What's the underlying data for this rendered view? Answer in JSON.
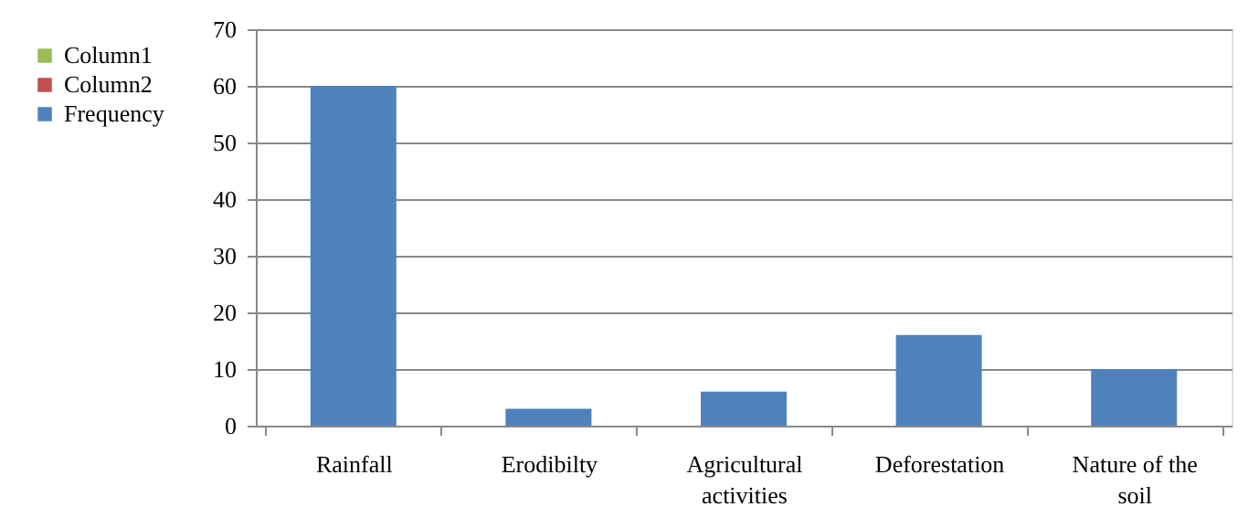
{
  "chart_data": {
    "type": "bar",
    "categories": [
      "Rainfall",
      "Erodibilty",
      "Agricultural activities",
      "Deforestation",
      "Nature of the soil"
    ],
    "series": [
      {
        "name": "Column1",
        "color": "#9bbb59",
        "values": [
          null,
          null,
          null,
          null,
          null
        ]
      },
      {
        "name": "Column2",
        "color": "#c0504d",
        "values": [
          null,
          null,
          null,
          null,
          null
        ]
      },
      {
        "name": "Frequency",
        "color": "#4f81bd",
        "values": [
          60,
          3,
          6,
          16,
          10
        ]
      }
    ],
    "ylim": [
      0,
      70
    ],
    "yticks": [
      0,
      10,
      20,
      30,
      40,
      50,
      60,
      70
    ],
    "grid": "y",
    "legend": "left"
  }
}
